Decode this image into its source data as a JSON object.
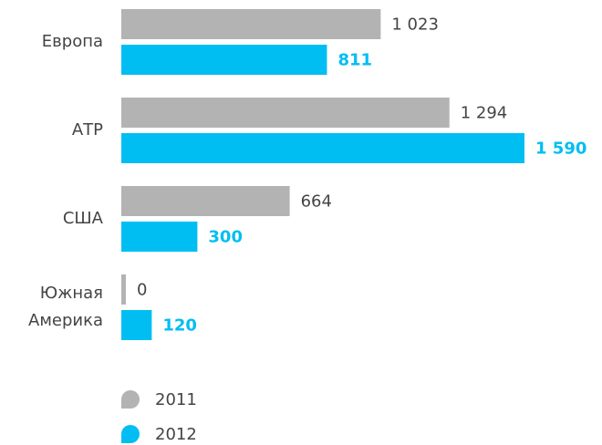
{
  "chart_data": {
    "type": "bar",
    "orientation": "horizontal",
    "categories": [
      "Европа",
      "АТР",
      "США",
      "Южная Америка"
    ],
    "series": [
      {
        "name": "2011",
        "color": "#b3b3b3",
        "values": [
          1023,
          1294,
          664,
          0
        ],
        "value_labels": [
          "1 023",
          "1 294",
          "664",
          "0"
        ]
      },
      {
        "name": "2012",
        "color": "#00bef2",
        "values": [
          811,
          1590,
          300,
          120
        ],
        "value_labels": [
          "811",
          "1 590",
          "300",
          "120"
        ]
      }
    ],
    "xlim": [
      0,
      1590
    ]
  }
}
